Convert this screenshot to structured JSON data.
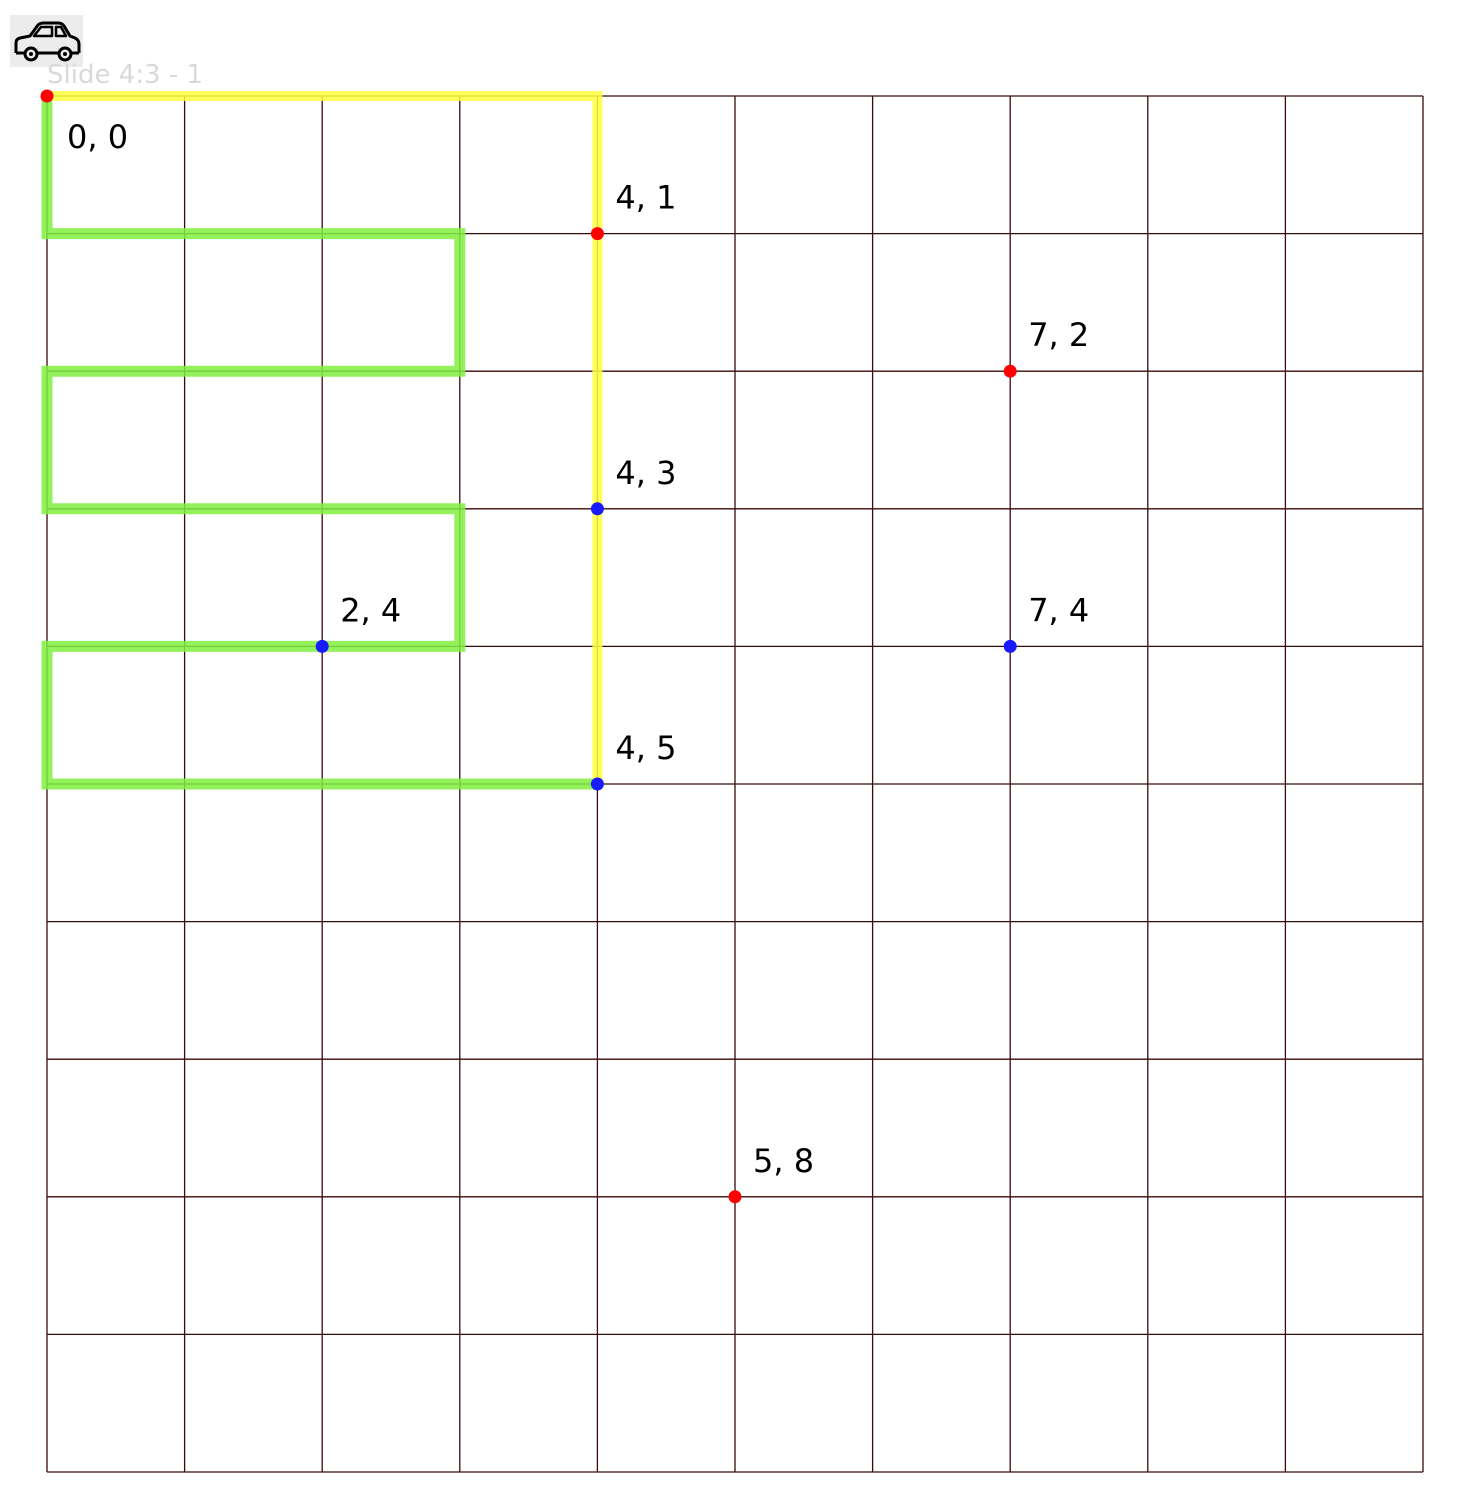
{
  "slide": {
    "label": "Slide 4:3 - 1"
  },
  "icon": {
    "name": "car-icon"
  },
  "grid": {
    "cols": 10,
    "rows": 10,
    "line_color": "#3a0a0a",
    "background": "#ffffff"
  },
  "colors": {
    "red_point": "#ff0000",
    "blue_point": "#1a1aff",
    "yellow_path": "#ffff40",
    "green_path": "#80f040"
  },
  "points": [
    {
      "x": 0,
      "y": 0,
      "label": "0, 0",
      "color": "red"
    },
    {
      "x": 4,
      "y": 1,
      "label": "4, 1",
      "color": "red"
    },
    {
      "x": 7,
      "y": 2,
      "label": "7, 2",
      "color": "red"
    },
    {
      "x": 4,
      "y": 3,
      "label": "4, 3",
      "color": "blue"
    },
    {
      "x": 2,
      "y": 4,
      "label": "2, 4",
      "color": "blue"
    },
    {
      "x": 7,
      "y": 4,
      "label": "7, 4",
      "color": "blue"
    },
    {
      "x": 4,
      "y": 5,
      "label": "4, 5",
      "color": "blue"
    },
    {
      "x": 5,
      "y": 8,
      "label": "5, 8",
      "color": "red"
    }
  ],
  "paths": {
    "yellow": [
      [
        0,
        0
      ],
      [
        4,
        0
      ],
      [
        4,
        5
      ]
    ],
    "green": [
      [
        0,
        0
      ],
      [
        0,
        1
      ],
      [
        3,
        1
      ],
      [
        3,
        2
      ],
      [
        0,
        2
      ],
      [
        0,
        3
      ],
      [
        3,
        3
      ],
      [
        3,
        4
      ],
      [
        0,
        4
      ],
      [
        0,
        5
      ],
      [
        4,
        5
      ]
    ]
  }
}
